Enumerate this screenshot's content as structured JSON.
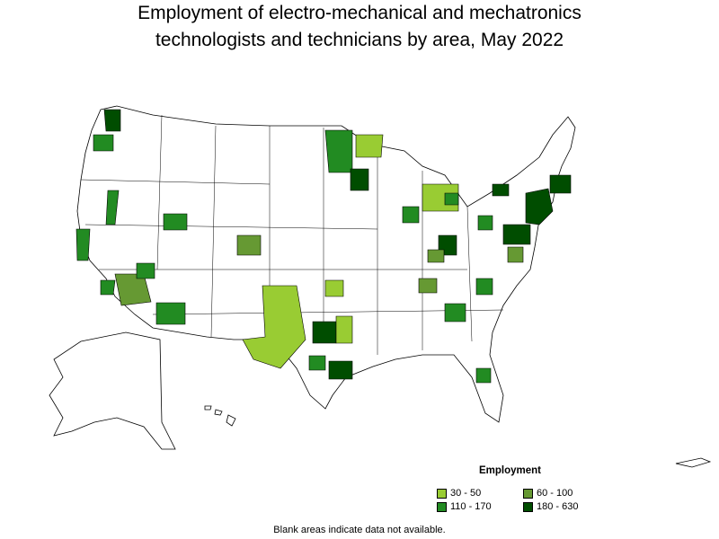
{
  "title": {
    "line1": "Employment of electro-mechanical and mechatronics",
    "line2": "technologists and technicians by area, May 2022"
  },
  "legend": {
    "title": "Employment",
    "items": [
      {
        "label": "30 - 50",
        "color": "#99cc33"
      },
      {
        "label": "60 - 100",
        "color": "#669933"
      },
      {
        "label": "110 - 170",
        "color": "#228b22"
      },
      {
        "label": "180 - 630",
        "color": "#004d00"
      }
    ]
  },
  "note": "Blank areas indicate data not available.",
  "map_regions": [
    {
      "name": "western-washington",
      "class": "180 - 630"
    },
    {
      "name": "portland",
      "class": "110 - 170"
    },
    {
      "name": "sacramento",
      "class": "110 - 170"
    },
    {
      "name": "bay-area",
      "class": "110 - 170"
    },
    {
      "name": "los-angeles",
      "class": "110 - 170"
    },
    {
      "name": "southern-california-desert",
      "class": "60 - 100"
    },
    {
      "name": "phoenix",
      "class": "110 - 170"
    },
    {
      "name": "salt-lake-city",
      "class": "110 - 170"
    },
    {
      "name": "denver",
      "class": "60 - 100"
    },
    {
      "name": "minneapolis",
      "class": "180 - 630"
    },
    {
      "name": "north-dakota-area",
      "class": "110 - 170"
    },
    {
      "name": "west-texas",
      "class": "30 - 50"
    },
    {
      "name": "dallas",
      "class": "180 - 630"
    },
    {
      "name": "houston",
      "class": "180 - 630"
    },
    {
      "name": "austin",
      "class": "110 - 170"
    },
    {
      "name": "chicago",
      "class": "110 - 170"
    },
    {
      "name": "detroit",
      "class": "110 - 170"
    },
    {
      "name": "ohio",
      "class": "180 - 630"
    },
    {
      "name": "atlanta",
      "class": "110 - 170"
    },
    {
      "name": "northeast-corridor",
      "class": "180 - 630"
    }
  ]
}
